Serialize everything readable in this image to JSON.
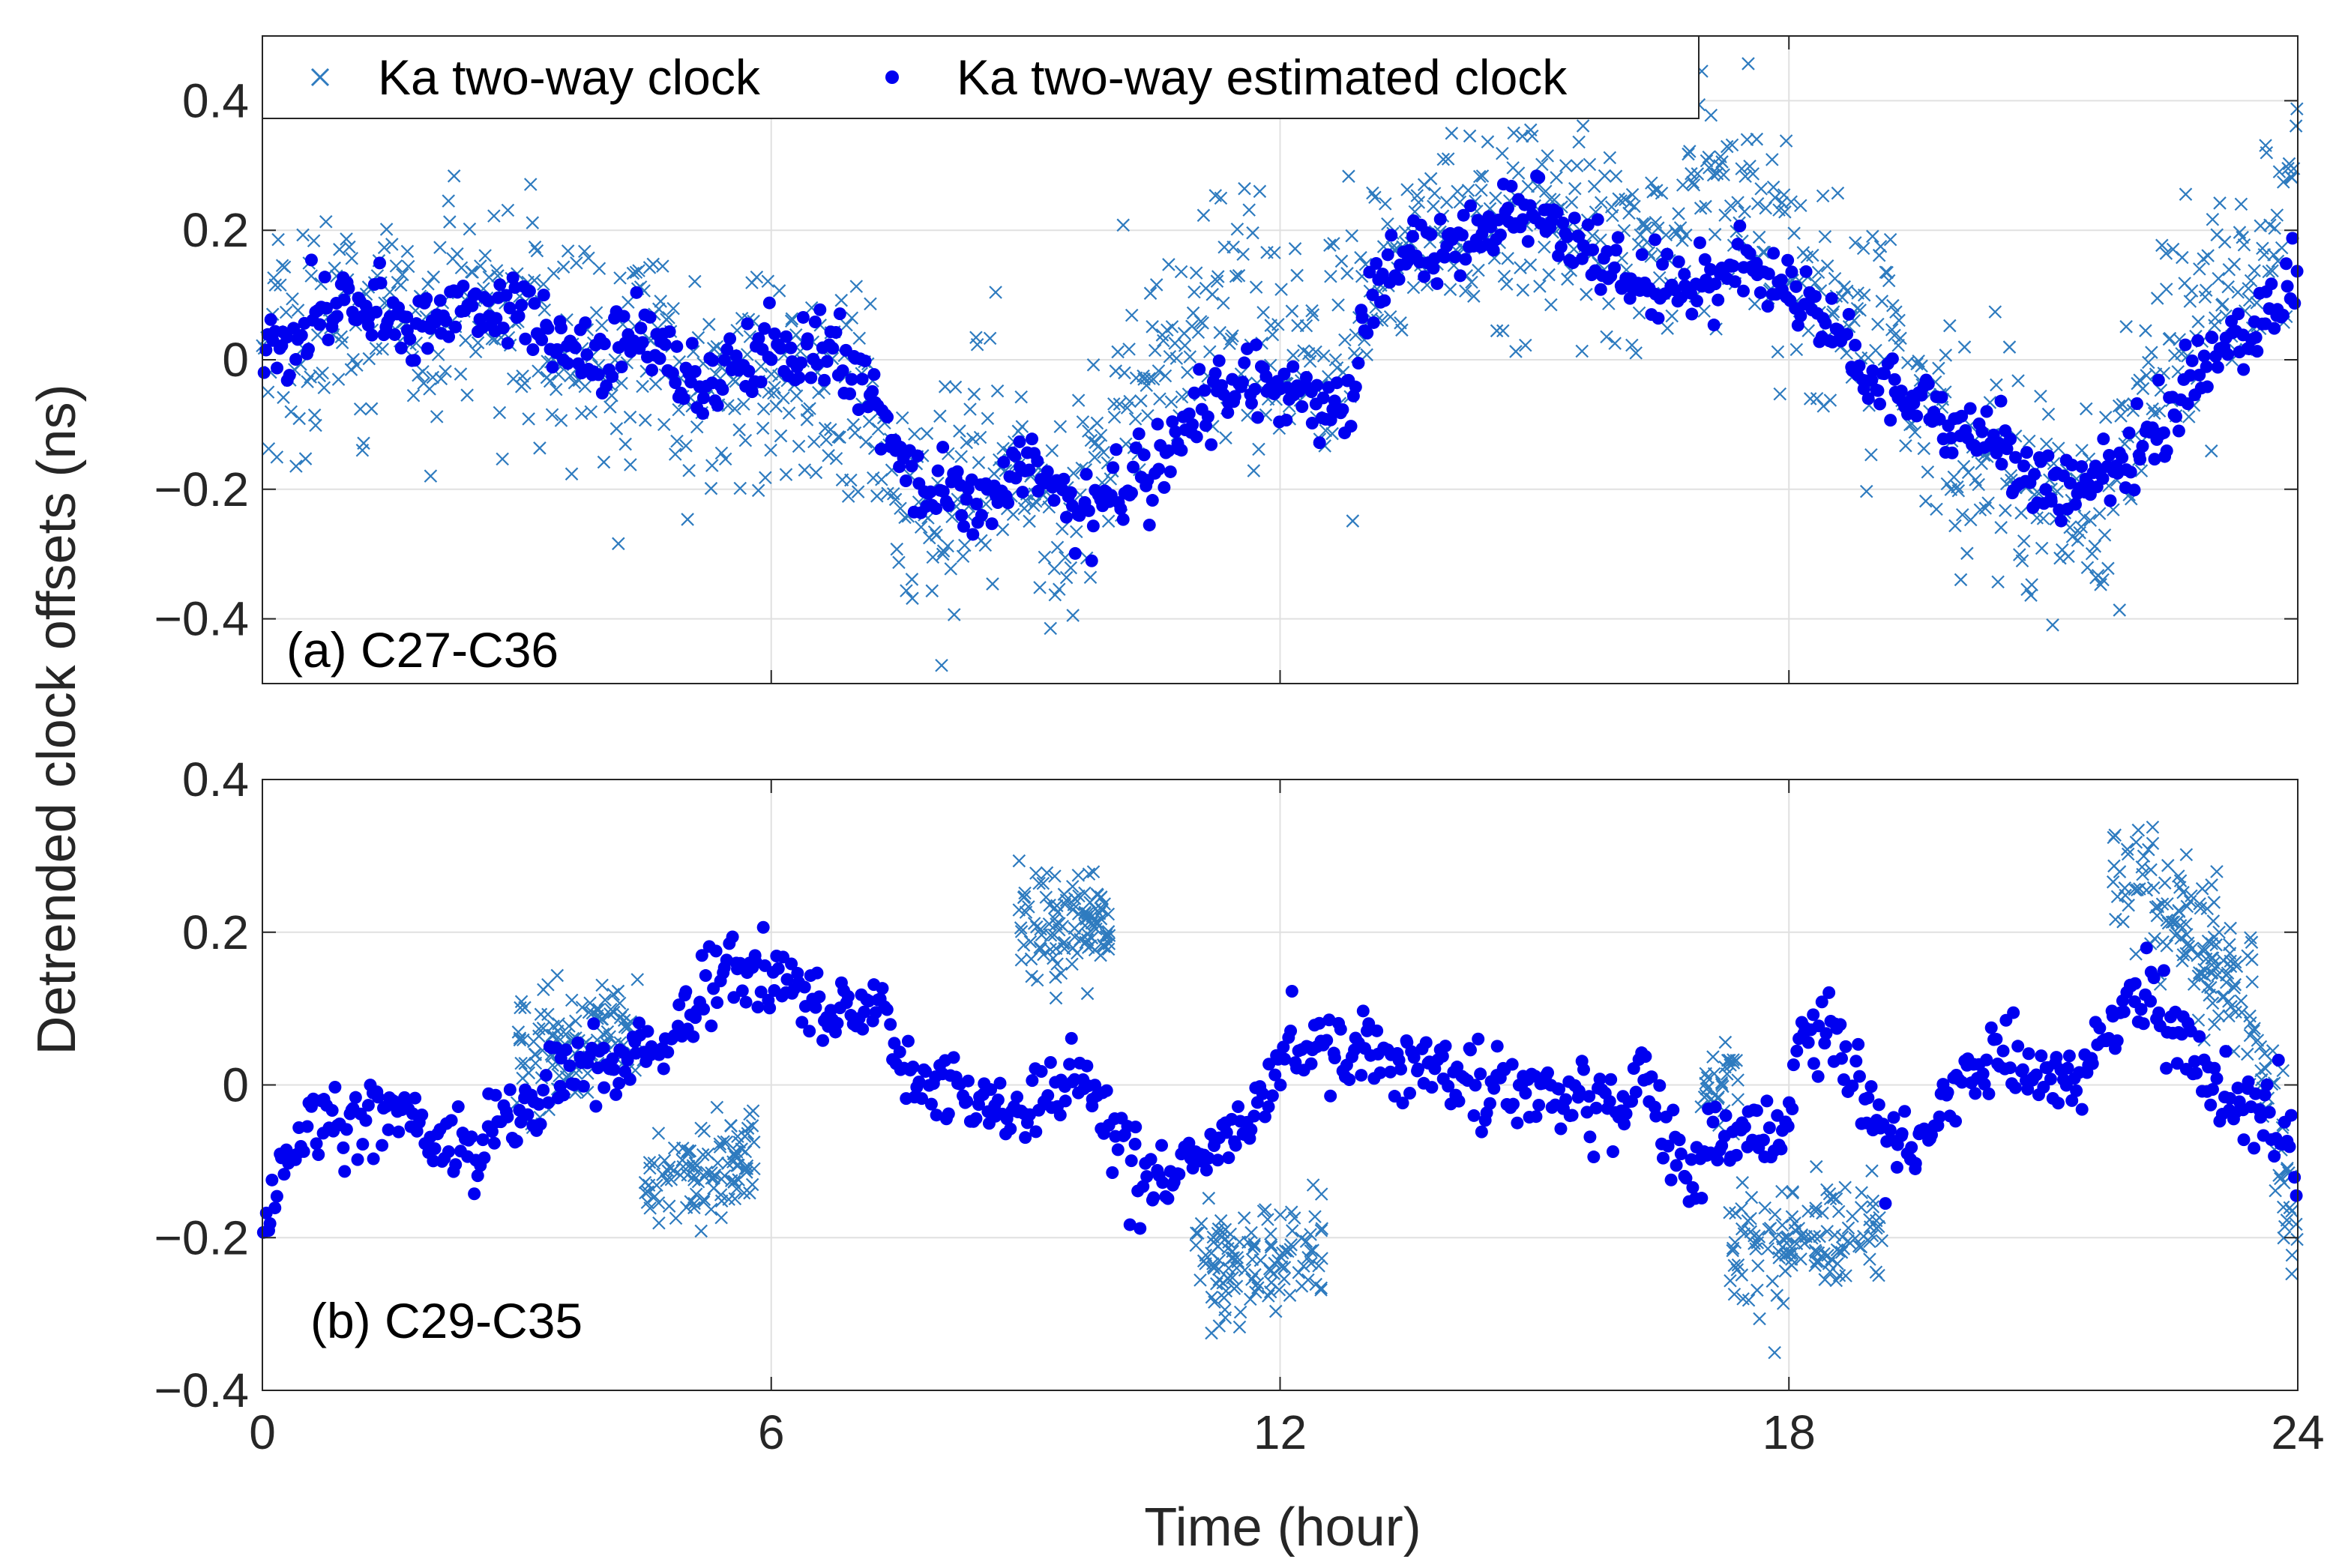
{
  "chart_data": [
    {
      "type": "scatter",
      "panel_label": "(a) C27-C36",
      "xlim": [
        0,
        24
      ],
      "ylim": [
        -0.5,
        0.5
      ],
      "xticks": [
        0,
        6,
        12,
        18,
        24
      ],
      "yticks": [
        -0.4,
        -0.2,
        0,
        0.2,
        0.4
      ],
      "ytick_labels": [
        "−0.4",
        "−0.2",
        "0",
        "0.2",
        "0.4"
      ],
      "grid": true,
      "series": [
        {
          "name": "Ka two-way clock",
          "marker": "x",
          "color": "#2E7BBF",
          "trend": [
            [
              0,
              0.02
            ],
            [
              0.5,
              0.0
            ],
            [
              1,
              0.06
            ],
            [
              2,
              0.05
            ],
            [
              2.5,
              0.09
            ],
            [
              3,
              0.06
            ],
            [
              4,
              0.01
            ],
            [
              5,
              -0.02
            ],
            [
              6,
              -0.02
            ],
            [
              7,
              -0.05
            ],
            [
              7.5,
              -0.2
            ],
            [
              8,
              -0.25
            ],
            [
              8.5,
              -0.15
            ],
            [
              9,
              -0.18
            ],
            [
              9.5,
              -0.22
            ],
            [
              10,
              -0.12
            ],
            [
              10.5,
              -0.05
            ],
            [
              11,
              0.02
            ],
            [
              11.5,
              0.05
            ],
            [
              12,
              0.0
            ],
            [
              12.5,
              -0.02
            ],
            [
              13,
              0.12
            ],
            [
              14,
              0.22
            ],
            [
              15,
              0.22
            ],
            [
              16,
              0.18
            ],
            [
              17,
              0.2
            ],
            [
              17.5,
              0.25
            ],
            [
              18,
              0.15
            ],
            [
              19,
              0.05
            ],
            [
              19.5,
              -0.05
            ],
            [
              20,
              -0.15
            ],
            [
              20.5,
              -0.22
            ],
            [
              21,
              -0.2
            ],
            [
              21.5,
              -0.25
            ],
            [
              22,
              -0.12
            ],
            [
              22.5,
              0.05
            ],
            [
              23,
              0.1
            ],
            [
              23.5,
              0.18
            ],
            [
              24,
              0.25
            ]
          ],
          "noise": 0.09,
          "count": 1300
        },
        {
          "name": "Ka two-way estimated clock",
          "marker": "dot",
          "color": "#0000F0",
          "trend": [
            [
              0,
              0.02
            ],
            [
              0.3,
              0.0
            ],
            [
              0.6,
              0.05
            ],
            [
              1,
              0.1
            ],
            [
              1.5,
              0.06
            ],
            [
              2,
              0.04
            ],
            [
              2.5,
              0.1
            ],
            [
              3,
              0.07
            ],
            [
              3.5,
              0.03
            ],
            [
              4,
              -0.01
            ],
            [
              4.5,
              0.03
            ],
            [
              5,
              -0.04
            ],
            [
              5.5,
              -0.02
            ],
            [
              6,
              0.0
            ],
            [
              6.5,
              0.01
            ],
            [
              7,
              -0.02
            ],
            [
              7.3,
              -0.08
            ],
            [
              7.6,
              -0.18
            ],
            [
              8,
              -0.2
            ],
            [
              8.5,
              -0.22
            ],
            [
              9,
              -0.15
            ],
            [
              9.5,
              -0.22
            ],
            [
              9.8,
              -0.25
            ],
            [
              10,
              -0.2
            ],
            [
              10.5,
              -0.18
            ],
            [
              11,
              -0.08
            ],
            [
              11.5,
              -0.03
            ],
            [
              12,
              -0.05
            ],
            [
              12.5,
              -0.08
            ],
            [
              12.9,
              -0.03
            ],
            [
              13,
              0.08
            ],
            [
              13.5,
              0.17
            ],
            [
              14,
              0.17
            ],
            [
              14.5,
              0.22
            ],
            [
              15,
              0.23
            ],
            [
              15.5,
              0.18
            ],
            [
              16,
              0.14
            ],
            [
              16.5,
              0.1
            ],
            [
              17,
              0.12
            ],
            [
              17.5,
              0.16
            ],
            [
              18,
              0.12
            ],
            [
              18.5,
              0.05
            ],
            [
              19,
              -0.03
            ],
            [
              19.5,
              -0.05
            ],
            [
              20,
              -0.1
            ],
            [
              20.5,
              -0.14
            ],
            [
              21,
              -0.2
            ],
            [
              21.5,
              -0.2
            ],
            [
              22,
              -0.15
            ],
            [
              22.5,
              -0.08
            ],
            [
              23,
              0.0
            ],
            [
              23.5,
              0.05
            ],
            [
              24,
              0.13
            ]
          ],
          "noise": 0.03,
          "count": 900
        }
      ]
    },
    {
      "type": "scatter",
      "panel_label": "(b) C29-C35",
      "xlim": [
        0,
        24
      ],
      "ylim": [
        -0.4,
        0.4
      ],
      "xticks": [
        0,
        6,
        12,
        18,
        24
      ],
      "xtick_labels": [
        "0",
        "6",
        "12",
        "18",
        "24"
      ],
      "yticks": [
        -0.4,
        -0.2,
        0,
        0.2,
        0.4
      ],
      "ytick_labels": [
        "−0.4",
        "−0.2",
        "0",
        "0.2",
        "0.4"
      ],
      "grid": true,
      "series": [
        {
          "name": "Ka two-way clock",
          "marker": "x",
          "color": "#2E7BBF",
          "segments": [
            {
              "x": [
                3,
                4.5
              ],
              "y": [
                0.03,
                0.08
              ],
              "noise": 0.04,
              "count": 120
            },
            {
              "x": [
                4.5,
                5.8
              ],
              "y": [
                -0.14,
                -0.08
              ],
              "noise": 0.03,
              "count": 110
            },
            {
              "x": [
                8.9,
                10
              ],
              "y": [
                0.21,
                0.2
              ],
              "noise": 0.04,
              "count": 110
            },
            {
              "x": [
                11,
                12.5
              ],
              "y": [
                -0.23,
                -0.22
              ],
              "noise": 0.04,
              "count": 120
            },
            {
              "x": [
                16.9,
                17.4
              ],
              "y": [
                0.0,
                0.0
              ],
              "noise": 0.03,
              "count": 30
            },
            {
              "x": [
                17.3,
                19.1
              ],
              "y": [
                -0.2,
                -0.2
              ],
              "noise": 0.04,
              "count": 130
            },
            {
              "x": [
                21.8,
                23.5
              ],
              "y": [
                0.3,
                0.1
              ],
              "noise": 0.05,
              "count": 140
            },
            {
              "x": [
                23.5,
                24
              ],
              "y": [
                0.05,
                -0.22
              ],
              "noise": 0.05,
              "count": 40
            }
          ]
        },
        {
          "name": "Ka two-way estimated clock",
          "marker": "dot",
          "color": "#0000F0",
          "trend": [
            [
              0,
              -0.2
            ],
            [
              0.3,
              -0.1
            ],
            [
              0.6,
              -0.03
            ],
            [
              1,
              -0.05
            ],
            [
              1.5,
              -0.02
            ],
            [
              2,
              -0.07
            ],
            [
              2.5,
              -0.08
            ],
            [
              3,
              -0.04
            ],
            [
              3.5,
              0.01
            ],
            [
              4,
              0.03
            ],
            [
              4.5,
              0.04
            ],
            [
              5,
              0.1
            ],
            [
              5.5,
              0.16
            ],
            [
              6,
              0.14
            ],
            [
              6.5,
              0.11
            ],
            [
              7,
              0.1
            ],
            [
              7.3,
              0.11
            ],
            [
              7.5,
              0.02
            ],
            [
              8,
              0.0
            ],
            [
              8.5,
              -0.02
            ],
            [
              9,
              -0.03
            ],
            [
              9.3,
              0.0
            ],
            [
              9.6,
              0.02
            ],
            [
              10,
              -0.05
            ],
            [
              10.3,
              -0.12
            ],
            [
              10.7,
              -0.13
            ],
            [
              11,
              -0.1
            ],
            [
              11.5,
              -0.05
            ],
            [
              12,
              0.02
            ],
            [
              12.5,
              0.05
            ],
            [
              13,
              0.04
            ],
            [
              13.5,
              0.03
            ],
            [
              14,
              0.01
            ],
            [
              14.5,
              0.0
            ],
            [
              15,
              0.0
            ],
            [
              15.5,
              -0.02
            ],
            [
              16,
              -0.04
            ],
            [
              16.3,
              0.02
            ],
            [
              16.5,
              -0.06
            ],
            [
              16.8,
              -0.13
            ],
            [
              17,
              -0.08
            ],
            [
              17.5,
              -0.05
            ],
            [
              17.9,
              -0.08
            ],
            [
              18.2,
              0.08
            ],
            [
              18.5,
              0.05
            ],
            [
              18.8,
              0.03
            ],
            [
              19,
              -0.07
            ],
            [
              19.5,
              -0.08
            ],
            [
              20,
              0.0
            ],
            [
              20.5,
              0.04
            ],
            [
              21,
              0.0
            ],
            [
              21.5,
              0.02
            ],
            [
              22,
              0.12
            ],
            [
              22.3,
              0.1
            ],
            [
              22.6,
              0.05
            ],
            [
              23,
              0.0
            ],
            [
              23.5,
              -0.03
            ],
            [
              24,
              -0.1
            ]
          ],
          "noise": 0.025,
          "count": 900
        }
      ]
    }
  ],
  "legend": {
    "placement": "top-left",
    "entries": [
      {
        "label": "Ka two-way clock",
        "marker": "x",
        "color": "#2E7BBF"
      },
      {
        "label": "Ka two-way estimated clock",
        "marker": "dot",
        "color": "#0000F0"
      }
    ]
  },
  "xlabel": "Time (hour)",
  "ylabel": "Detrended clock offsets (ns)"
}
